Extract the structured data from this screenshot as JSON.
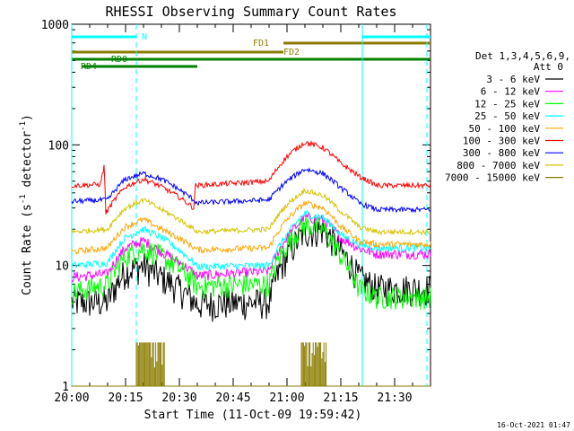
{
  "chart_data": {
    "type": "line",
    "title": "RHESSI Observing Summary Count Rates",
    "xlabel": "Start Time (11-Oct-09 19:59:42)",
    "ylabel_main": "Count Rate (s",
    "ylabel_sup1": "-1",
    "ylabel_mid": " detector",
    "ylabel_sup2": "-1",
    "ylabel_end": ")",
    "y_scale": "log",
    "ylim": [
      1,
      1000
    ],
    "xlim_minutes": [
      0,
      100
    ],
    "x_ticks": [
      {
        "t": 0,
        "label": "20:00"
      },
      {
        "t": 15,
        "label": "20:15"
      },
      {
        "t": 30,
        "label": "20:30"
      },
      {
        "t": 45,
        "label": "20:45"
      },
      {
        "t": 60,
        "label": "21:00"
      },
      {
        "t": 75,
        "label": "21:15"
      },
      {
        "t": 90,
        "label": "21:30"
      }
    ],
    "y_ticks": [
      {
        "v": 1,
        "label": "1"
      },
      {
        "v": 10,
        "label": "10"
      },
      {
        "v": 100,
        "label": "100"
      },
      {
        "v": 1000,
        "label": "1000"
      }
    ],
    "legend_header": [
      "Det 1,3,4,5,6,9,",
      "Att 0"
    ],
    "legend_position": "right",
    "timestamp": "16-Oct-2021 01:47",
    "series": [
      {
        "name": "3 - 6 keV",
        "color": "#000000",
        "values": [
          [
            0,
            5
          ],
          [
            10,
            5
          ],
          [
            15,
            9
          ],
          [
            20,
            10
          ],
          [
            25,
            8
          ],
          [
            35,
            4.8
          ],
          [
            55,
            5
          ],
          [
            60,
            12
          ],
          [
            65,
            19
          ],
          [
            70,
            20
          ],
          [
            75,
            13
          ],
          [
            80,
            8
          ],
          [
            85,
            6.5
          ],
          [
            100,
            6.5
          ]
        ]
      },
      {
        "name": "6 - 12 keV",
        "color": "#ff00ff",
        "values": [
          [
            0,
            8
          ],
          [
            10,
            8.5
          ],
          [
            15,
            14
          ],
          [
            20,
            16
          ],
          [
            25,
            13
          ],
          [
            35,
            8.2
          ],
          [
            55,
            9
          ],
          [
            60,
            17
          ],
          [
            65,
            25
          ],
          [
            70,
            24
          ],
          [
            75,
            17
          ],
          [
            80,
            14
          ],
          [
            85,
            12.5
          ],
          [
            100,
            12.5
          ]
        ]
      },
      {
        "name": "12 - 25 keV",
        "color": "#00ff00",
        "values": [
          [
            0,
            6
          ],
          [
            10,
            7
          ],
          [
            15,
            12
          ],
          [
            20,
            14
          ],
          [
            25,
            12
          ],
          [
            35,
            6.8
          ],
          [
            55,
            7
          ],
          [
            60,
            15
          ],
          [
            65,
            22
          ],
          [
            70,
            20
          ],
          [
            75,
            12
          ],
          [
            80,
            6.5
          ],
          [
            85,
            5.5
          ],
          [
            100,
            5.5
          ]
        ]
      },
      {
        "name": "25 - 50 keV",
        "color": "#00ffff",
        "values": [
          [
            0,
            10
          ],
          [
            10,
            10.5
          ],
          [
            15,
            17
          ],
          [
            20,
            20
          ],
          [
            25,
            17
          ],
          [
            35,
            9.8
          ],
          [
            55,
            10
          ],
          [
            60,
            18
          ],
          [
            65,
            27
          ],
          [
            70,
            25
          ],
          [
            75,
            18
          ],
          [
            80,
            15
          ],
          [
            85,
            14
          ],
          [
            100,
            14
          ]
        ]
      },
      {
        "name": "50 - 100 keV",
        "color": "#ffa500",
        "values": [
          [
            0,
            13
          ],
          [
            10,
            14
          ],
          [
            15,
            21
          ],
          [
            20,
            24
          ],
          [
            25,
            20
          ],
          [
            35,
            13.5
          ],
          [
            55,
            14
          ],
          [
            60,
            24
          ],
          [
            65,
            33
          ],
          [
            70,
            30
          ],
          [
            75,
            21
          ],
          [
            80,
            16
          ],
          [
            85,
            15
          ],
          [
            100,
            15
          ]
        ]
      },
      {
        "name": "100 - 300 keV",
        "color": "#ff0000",
        "values": [
          [
            0,
            46
          ],
          [
            8,
            47
          ],
          [
            9,
            66
          ],
          [
            9.5,
            27
          ],
          [
            15,
            45
          ],
          [
            20,
            52
          ],
          [
            25,
            45
          ],
          [
            34,
            30
          ],
          [
            34.5,
            46
          ],
          [
            55,
            50
          ],
          [
            60,
            80
          ],
          [
            65,
            105
          ],
          [
            70,
            95
          ],
          [
            75,
            70
          ],
          [
            80,
            55
          ],
          [
            85,
            46
          ],
          [
            100,
            46
          ]
        ]
      },
      {
        "name": "300 - 800 keV",
        "color": "#0000ff",
        "values": [
          [
            0,
            34
          ],
          [
            10,
            35
          ],
          [
            15,
            52
          ],
          [
            20,
            58
          ],
          [
            25,
            52
          ],
          [
            35,
            33
          ],
          [
            55,
            35
          ],
          [
            60,
            50
          ],
          [
            65,
            63
          ],
          [
            70,
            58
          ],
          [
            75,
            44
          ],
          [
            80,
            33
          ],
          [
            85,
            29
          ],
          [
            100,
            29
          ]
        ]
      },
      {
        "name": "800 - 7000 keV",
        "color": "#d4c400",
        "values": [
          [
            0,
            19
          ],
          [
            10,
            20
          ],
          [
            15,
            30
          ],
          [
            20,
            35
          ],
          [
            25,
            29
          ],
          [
            35,
            19
          ],
          [
            55,
            20
          ],
          [
            60,
            32
          ],
          [
            65,
            42
          ],
          [
            70,
            38
          ],
          [
            75,
            28
          ],
          [
            80,
            21
          ],
          [
            85,
            19
          ],
          [
            100,
            19
          ]
        ]
      },
      {
        "name": "7000 - 15000 keV",
        "color": "#8b7d00",
        "values": [
          [
            0,
            1
          ],
          [
            18,
            1
          ],
          [
            18.5,
            2.3
          ],
          [
            25,
            2.3
          ],
          [
            26,
            1
          ],
          [
            64,
            1
          ],
          [
            64.5,
            2.2
          ],
          [
            70,
            2.2
          ],
          [
            71,
            1
          ],
          [
            100,
            1
          ]
        ]
      }
    ],
    "flags": [
      {
        "name": "N",
        "color": "#00ffff",
        "segments": [
          [
            0,
            18
          ],
          [
            81,
            100
          ]
        ]
      },
      {
        "name": "FD1",
        "color": "#8b7d00",
        "segments": [
          [
            59,
            100
          ]
        ]
      },
      {
        "name": "FD2",
        "color": "#8b7d00",
        "segments": [
          [
            0,
            59
          ]
        ]
      },
      {
        "name": "RD0",
        "color": "#008000",
        "segments": [
          [
            0,
            100
          ]
        ]
      },
      {
        "name": "RD4",
        "color": "#008000",
        "segments": [
          [
            3,
            35
          ]
        ]
      }
    ],
    "marker_lines": [
      {
        "t": 0,
        "color": "#00ffff",
        "dashed": false
      },
      {
        "t": 18,
        "color": "#00ffff",
        "dashed": true
      },
      {
        "t": 81,
        "color": "#00ffff",
        "dashed": false
      },
      {
        "t": 99,
        "color": "#00ffff",
        "dashed": true
      }
    ]
  }
}
